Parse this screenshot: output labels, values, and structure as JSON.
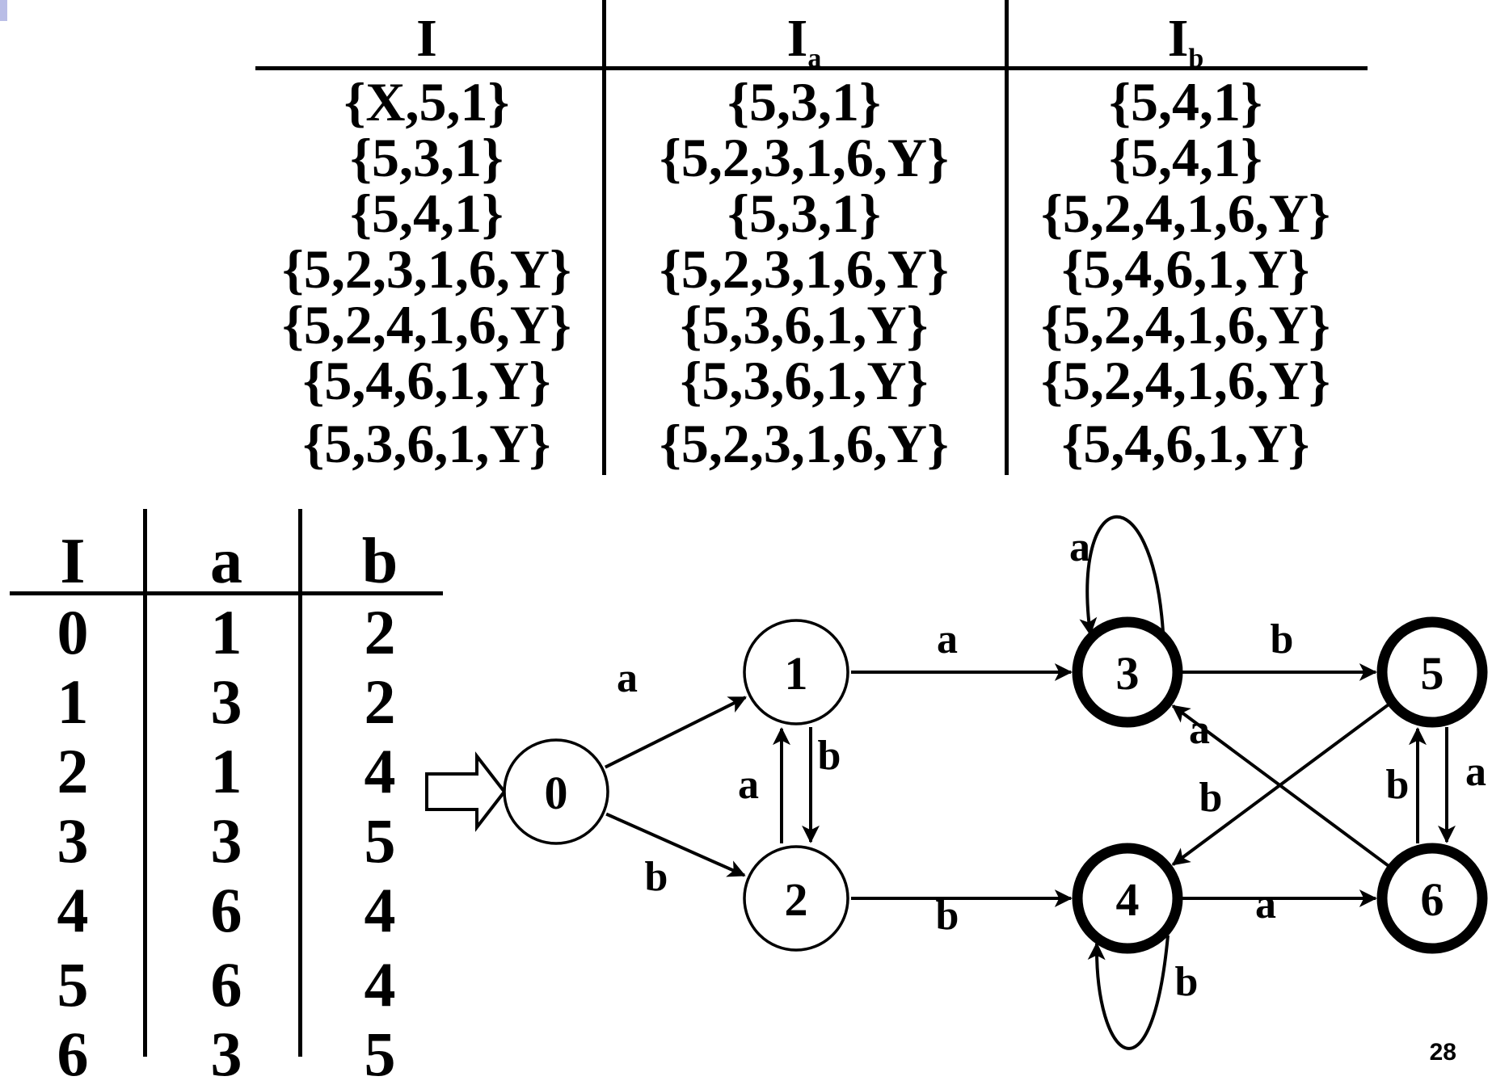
{
  "subset_table": {
    "headers": [
      {
        "base": "I",
        "sub": ""
      },
      {
        "base": "I",
        "sub": "a"
      },
      {
        "base": "I",
        "sub": "b"
      }
    ],
    "rows": [
      [
        "{X,5,1}",
        "{5,3,1}",
        "{5,4,1}"
      ],
      [
        "{5,3,1}",
        "{5,2,3,1,6,Y}",
        "{5,4,1}"
      ],
      [
        "{5,4,1}",
        "{5,3,1}",
        "{5,2,4,1,6,Y}"
      ],
      [
        "{5,2,3,1,6,Y}",
        "{5,2,3,1,6,Y}",
        "{5,4,6,1,Y}"
      ],
      [
        "{5,2,4,1,6,Y}",
        "{5,3,6,1,Y}",
        "{5,2,4,1,6,Y}"
      ],
      [
        "{5,4,6,1,Y}",
        "{5,3,6,1,Y}",
        "{5,2,4,1,6,Y}"
      ],
      [
        "{5,3,6,1,Y}",
        "{5,2,3,1,6,Y}",
        "{5,4,6,1,Y}"
      ]
    ]
  },
  "transition_table": {
    "headers": [
      "I",
      "a",
      "b"
    ],
    "rows": [
      [
        "0",
        "1",
        "2"
      ],
      [
        "1",
        "3",
        "2"
      ],
      [
        "2",
        "1",
        "4"
      ],
      [
        "3",
        "3",
        "5"
      ],
      [
        "4",
        "6",
        "4"
      ],
      [
        "5",
        "6",
        "4"
      ],
      [
        "6",
        "3",
        "5"
      ]
    ]
  },
  "dfa": {
    "start_state": "0",
    "states": [
      {
        "id": "0",
        "label": "0",
        "accepting": false
      },
      {
        "id": "1",
        "label": "1",
        "accepting": false
      },
      {
        "id": "2",
        "label": "2",
        "accepting": false
      },
      {
        "id": "3",
        "label": "3",
        "accepting": true
      },
      {
        "id": "4",
        "label": "4",
        "accepting": true
      },
      {
        "id": "5",
        "label": "5",
        "accepting": true
      },
      {
        "id": "6",
        "label": "6",
        "accepting": true
      }
    ],
    "transitions": [
      {
        "from": "0",
        "to": "1",
        "symbol": "a"
      },
      {
        "from": "0",
        "to": "2",
        "symbol": "b"
      },
      {
        "from": "1",
        "to": "3",
        "symbol": "a"
      },
      {
        "from": "1",
        "to": "2",
        "symbol": "b"
      },
      {
        "from": "2",
        "to": "1",
        "symbol": "a"
      },
      {
        "from": "2",
        "to": "4",
        "symbol": "b"
      },
      {
        "from": "3",
        "to": "3",
        "symbol": "a"
      },
      {
        "from": "3",
        "to": "5",
        "symbol": "b"
      },
      {
        "from": "4",
        "to": "6",
        "symbol": "a"
      },
      {
        "from": "4",
        "to": "4",
        "symbol": "b"
      },
      {
        "from": "5",
        "to": "6",
        "symbol": "a"
      },
      {
        "from": "5",
        "to": "4",
        "symbol": "b"
      },
      {
        "from": "6",
        "to": "3",
        "symbol": "a"
      },
      {
        "from": "6",
        "to": "5",
        "symbol": "b"
      }
    ]
  },
  "page_number": "28"
}
